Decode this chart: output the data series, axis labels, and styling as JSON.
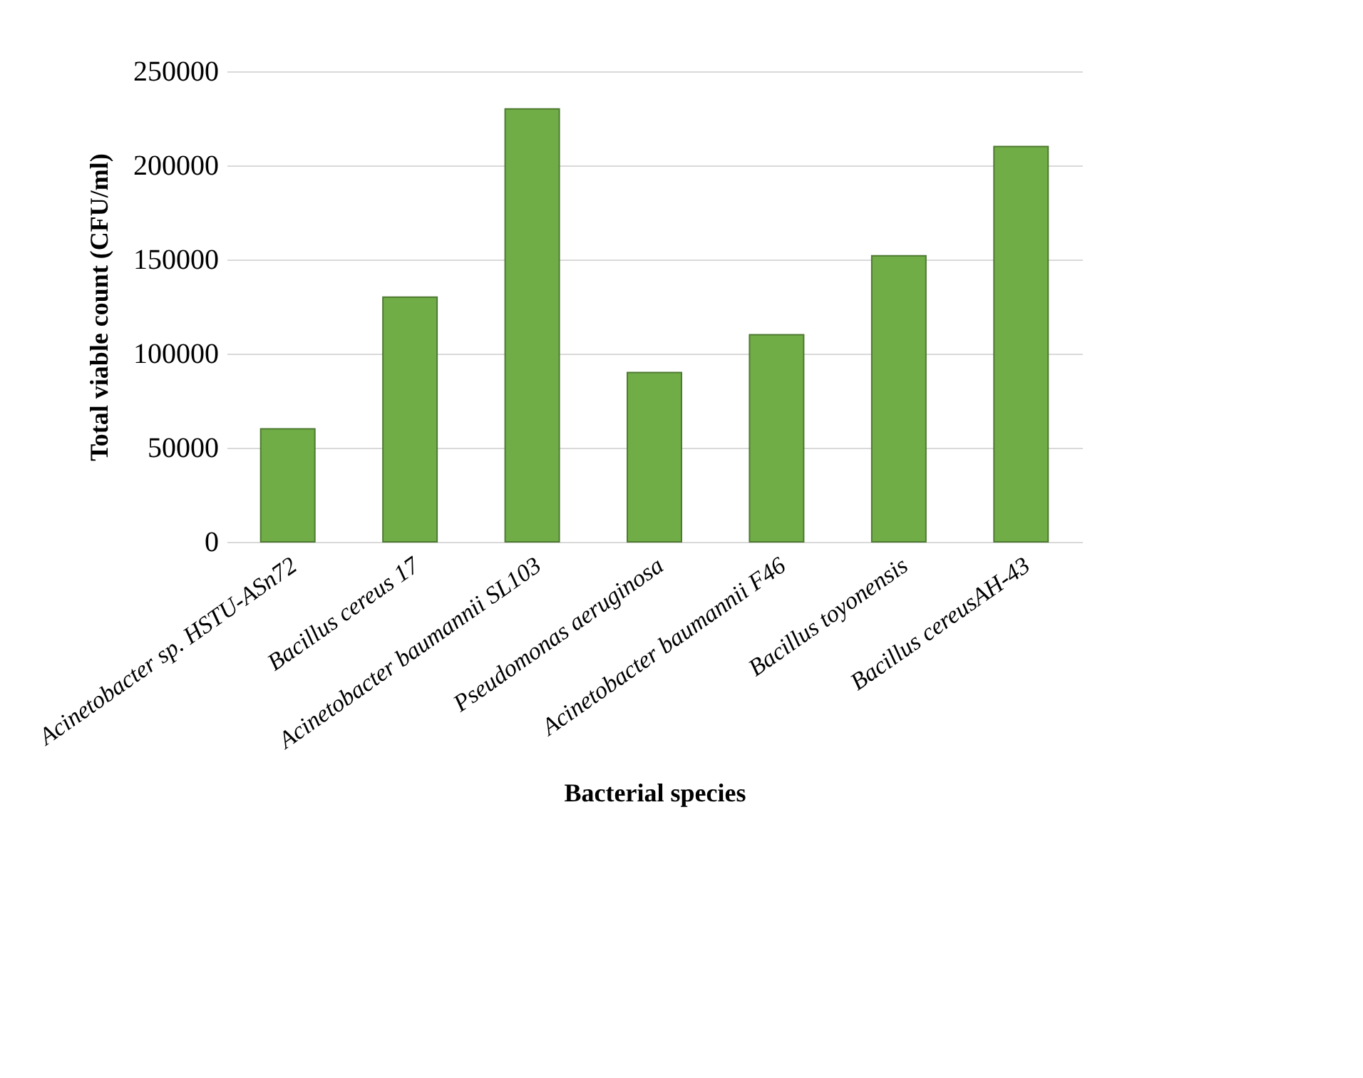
{
  "chart_data": {
    "type": "bar",
    "xlabel": "Bacterial species",
    "ylabel": "Total viable count (CFU/ml)",
    "categories": [
      "Acinetobacter sp.  HSTU-ASn72",
      "Bacillus cereus 17",
      "Acinetobacter baumannii SL103",
      "Pseudomonas aeruginosa",
      "Acinetobacter baumannii F46",
      "Bacillus toyonensis",
      "Bacillus cereusAH-43"
    ],
    "values": [
      60000,
      130000,
      230000,
      90000,
      110000,
      152000,
      210000
    ],
    "color": "#70ad47",
    "ylim": [
      0,
      250000
    ],
    "yticks": [
      0,
      50000,
      100000,
      150000,
      200000,
      250000
    ],
    "grid": "y"
  }
}
